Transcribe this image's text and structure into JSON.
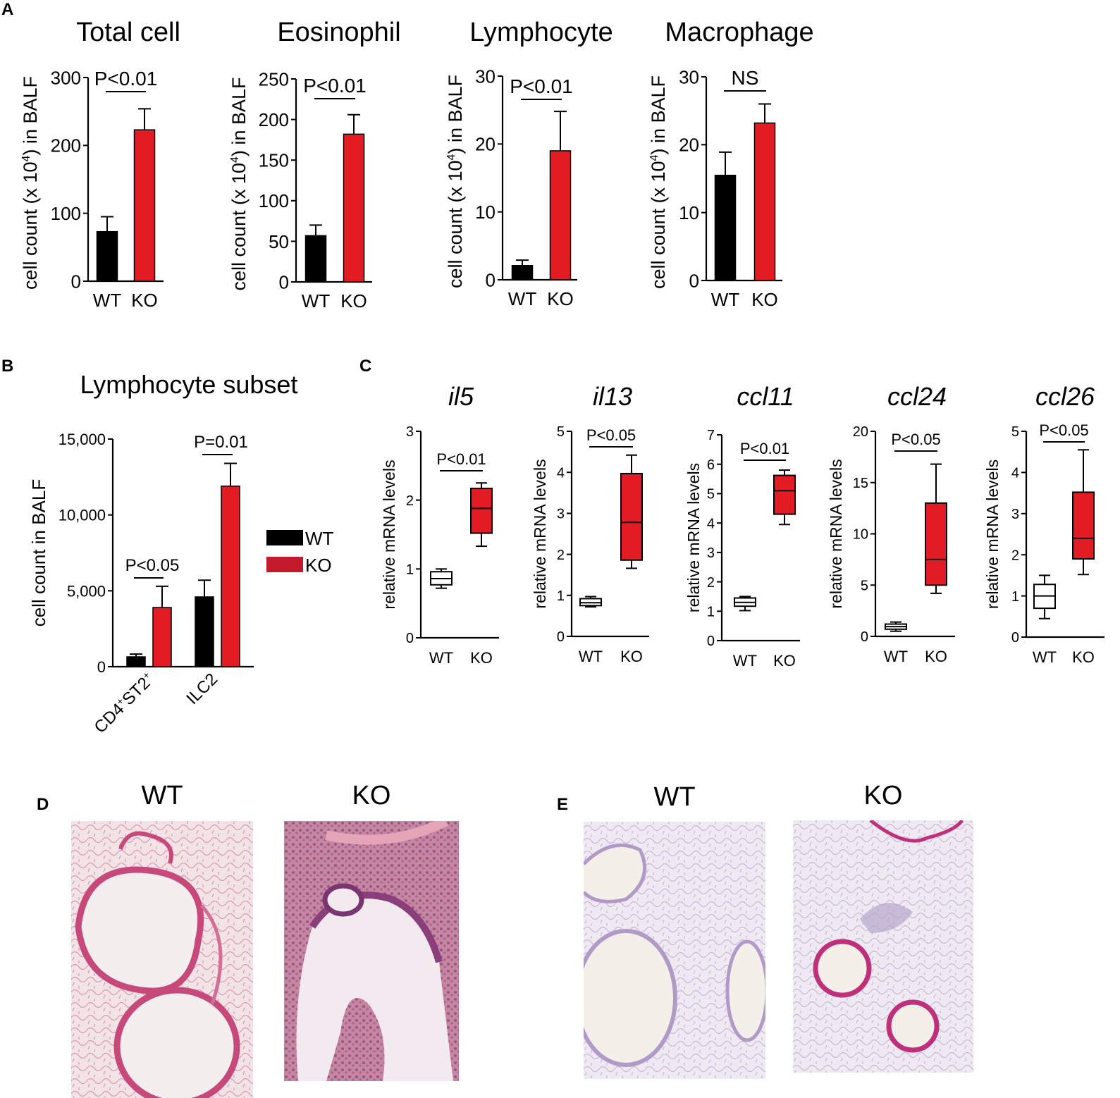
{
  "panels": {
    "A": "A",
    "B": "B",
    "C": "C",
    "D": "D",
    "E": "E"
  },
  "colors": {
    "wt": "#000000",
    "ko": "#e31b23",
    "ko_legend": "#c41a2e",
    "axis": "#000000"
  },
  "chart_data": [
    {
      "id": "A1",
      "type": "bar",
      "title": "Total cell",
      "ylabel": "cell count (x 10^4) in BALF",
      "ylabel_parts": {
        "main": "cell count (x 10",
        "sup": "4",
        "end": ") in BALF"
      },
      "categories": [
        "WT",
        "KO"
      ],
      "values": [
        73,
        223
      ],
      "errors": [
        22,
        31
      ],
      "ylim": [
        0,
        300
      ],
      "yticks": [
        "0",
        "100",
        "200",
        "300"
      ],
      "ytick_values": [
        0,
        100,
        200,
        300
      ],
      "annotation": "P<0.01"
    },
    {
      "id": "A2",
      "type": "bar",
      "title": "Eosinophil",
      "ylabel": "cell count (x 10^4) in BALF",
      "ylabel_parts": {
        "main": "cell count (x 10",
        "sup": "4",
        "end": ") in BALF"
      },
      "categories": [
        "WT",
        "KO"
      ],
      "values": [
        57,
        182
      ],
      "errors": [
        13,
        24
      ],
      "ylim": [
        0,
        250
      ],
      "yticks": [
        "0",
        "50",
        "100",
        "150",
        "200",
        "250"
      ],
      "ytick_values": [
        0,
        50,
        100,
        150,
        200,
        250
      ],
      "annotation": "P<0.01"
    },
    {
      "id": "A3",
      "type": "bar",
      "title": "Lymphocyte",
      "ylabel": "cell count (x 10^4) in BALF",
      "ylabel_parts": {
        "main": "cell count (x 10",
        "sup": "4",
        "end": ") in BALF"
      },
      "categories": [
        "WT",
        "KO"
      ],
      "values": [
        2.1,
        19.0
      ],
      "errors": [
        0.8,
        5.8
      ],
      "ylim": [
        0,
        30
      ],
      "yticks": [
        "0",
        "10",
        "20",
        "30"
      ],
      "ytick_values": [
        0,
        10,
        20,
        30
      ],
      "annotation": "P<0.01"
    },
    {
      "id": "A4",
      "type": "bar",
      "title": "Macrophage",
      "ylabel": "cell count (x 10^4) in BALF",
      "ylabel_parts": {
        "main": "cell count (x 10",
        "sup": "4",
        "end": ") in BALF"
      },
      "categories": [
        "WT",
        "KO"
      ],
      "values": [
        15.5,
        23.2
      ],
      "errors": [
        3.4,
        2.8
      ],
      "ylim": [
        0,
        30
      ],
      "yticks": [
        "0",
        "10",
        "20",
        "30"
      ],
      "ytick_values": [
        0,
        10,
        20,
        30
      ],
      "annotation": "NS"
    },
    {
      "id": "B",
      "type": "bar",
      "title": "Lymphocyte subset",
      "ylabel": "cell count in BALF",
      "categories": [
        "CD4+ST2+",
        "ILC2"
      ],
      "category_parts": [
        {
          "a": "CD4",
          "s1": "+",
          "b": "ST2",
          "s2": "+"
        },
        {
          "a": "ILC2",
          "s1": "",
          "b": "",
          "s2": ""
        }
      ],
      "series": [
        {
          "name": "WT",
          "values": [
            650,
            4600
          ],
          "errors": [
            180,
            1100
          ]
        },
        {
          "name": "KO",
          "values": [
            3900,
            11900
          ],
          "errors": [
            1400,
            1500
          ]
        }
      ],
      "ylim": [
        0,
        15000
      ],
      "yticks": [
        "0",
        "5,000",
        "10,000",
        "15,000"
      ],
      "ytick_values": [
        0,
        5000,
        10000,
        15000
      ],
      "annotations": [
        "P<0.05",
        "P=0.01"
      ],
      "legend": [
        "WT",
        "KO"
      ]
    },
    {
      "id": "C1",
      "type": "box",
      "title": "il5",
      "ylabel": "relative mRNA levels",
      "categories": [
        "WT",
        "KO"
      ],
      "boxes": [
        {
          "min": 0.72,
          "q1": 0.77,
          "median": 0.86,
          "q3": 0.96,
          "max": 1.0
        },
        {
          "min": 1.33,
          "q1": 1.52,
          "median": 1.88,
          "q3": 2.17,
          "max": 2.25
        }
      ],
      "ylim": [
        0,
        3
      ],
      "yticks": [
        "0",
        "1",
        "2",
        "3"
      ],
      "ytick_values": [
        0,
        1,
        2,
        3
      ],
      "annotation": "P<0.01"
    },
    {
      "id": "C2",
      "type": "box",
      "title": "il13",
      "ylabel": "relative mRNA levels",
      "categories": [
        "WT",
        "KO"
      ],
      "boxes": [
        {
          "min": 0.72,
          "q1": 0.75,
          "median": 0.82,
          "q3": 0.92,
          "max": 0.97
        },
        {
          "min": 1.66,
          "q1": 1.86,
          "median": 2.78,
          "q3": 3.97,
          "max": 4.42
        }
      ],
      "ylim": [
        0,
        5
      ],
      "yticks": [
        "0",
        "1",
        "2",
        "3",
        "4",
        "5"
      ],
      "ytick_values": [
        0,
        1,
        2,
        3,
        4,
        5
      ],
      "annotation": "P<0.05"
    },
    {
      "id": "C3",
      "type": "box",
      "title": "ccl11",
      "ylabel": "relative mRNA levels",
      "categories": [
        "WT",
        "KO"
      ],
      "boxes": [
        {
          "min": 1.02,
          "q1": 1.17,
          "median": 1.3,
          "q3": 1.45,
          "max": 1.5
        },
        {
          "min": 3.95,
          "q1": 4.3,
          "median": 5.1,
          "q3": 5.62,
          "max": 5.8
        }
      ],
      "ylim": [
        0,
        7
      ],
      "yticks": [
        "0",
        "1",
        "2",
        "3",
        "4",
        "5",
        "6",
        "7"
      ],
      "ytick_values": [
        0,
        1,
        2,
        3,
        4,
        5,
        6,
        7
      ],
      "annotation": "P<0.01"
    },
    {
      "id": "C4",
      "type": "box",
      "title": "ccl24",
      "ylabel": "relative mRNA levels",
      "categories": [
        "WT",
        "KO"
      ],
      "boxes": [
        {
          "min": 0.5,
          "q1": 0.7,
          "median": 0.95,
          "q3": 1.2,
          "max": 1.4
        },
        {
          "min": 4.2,
          "q1": 5.0,
          "median": 7.5,
          "q3": 13.0,
          "max": 16.8
        }
      ],
      "ylim": [
        0,
        20
      ],
      "yticks": [
        "0",
        "5",
        "10",
        "15",
        "20"
      ],
      "ytick_values": [
        0,
        5,
        10,
        15,
        20
      ],
      "annotation": "P<0.05"
    },
    {
      "id": "C5",
      "type": "box",
      "title": "ccl26",
      "ylabel": "relative mRNA levels",
      "categories": [
        "WT",
        "KO"
      ],
      "boxes": [
        {
          "min": 0.45,
          "q1": 0.7,
          "median": 1.0,
          "q3": 1.28,
          "max": 1.5
        },
        {
          "min": 1.52,
          "q1": 1.9,
          "median": 2.4,
          "q3": 3.52,
          "max": 4.55
        }
      ],
      "ylim": [
        0,
        5
      ],
      "yticks": [
        "0",
        "1",
        "2",
        "3",
        "4",
        "5"
      ],
      "ytick_values": [
        0,
        1,
        2,
        3,
        4,
        5
      ],
      "annotation": "P<0.05"
    }
  ],
  "histology": {
    "D": {
      "labels": [
        "WT",
        "KO"
      ]
    },
    "E": {
      "labels": [
        "WT",
        "KO"
      ]
    }
  }
}
